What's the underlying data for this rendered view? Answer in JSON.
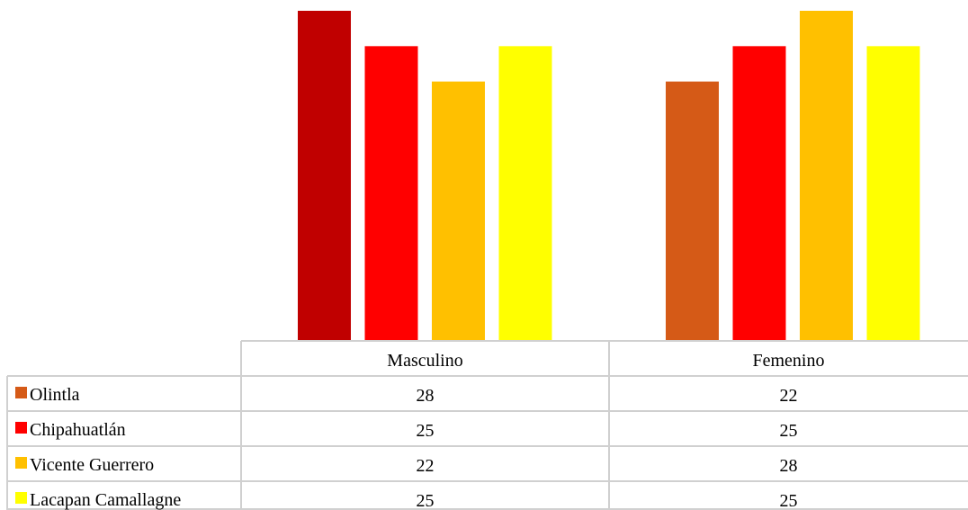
{
  "chart_data": {
    "type": "bar",
    "categories": [
      "Masculino",
      "Femenino"
    ],
    "series": [
      {
        "name": "Olintla",
        "values": [
          28,
          22
        ],
        "colors": [
          "#c00000",
          "#d55a17"
        ]
      },
      {
        "name": "Chipahuatlán",
        "values": [
          25,
          25
        ],
        "colors": [
          "#ff0000",
          "#ff0000"
        ]
      },
      {
        "name": "Vicente Guerrero",
        "values": [
          22,
          28
        ],
        "colors": [
          "#ffc000",
          "#ffc000"
        ]
      },
      {
        "name": "Lacapan Camallagne",
        "values": [
          25,
          25
        ],
        "colors": [
          "#ffff00",
          "#ffff00"
        ]
      }
    ],
    "legend_colors": [
      "#d55a17",
      "#ff0000",
      "#ffc000",
      "#ffff00"
    ],
    "ylim": [
      0,
      28
    ],
    "grid": false,
    "legend": "data-table"
  }
}
